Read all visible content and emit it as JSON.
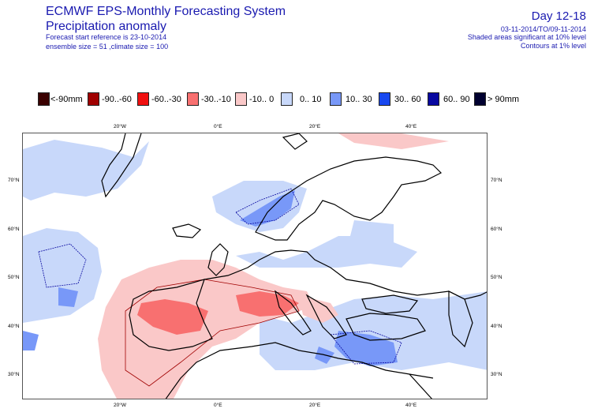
{
  "header": {
    "title": "ECMWF EPS-Monthly Forecasting System",
    "subtitle": "Precipitation anomaly",
    "forecast_ref": "Forecast start reference is 23-10-2014",
    "ensemble": "ensemble size = 51  ,climate size = 100",
    "day": "Day 12-18",
    "period": "03-11-2014/TO/09-11-2014",
    "sig10": "Shaded areas significant at 10% level",
    "sig1": "Contours at 1% level"
  },
  "legend": [
    {
      "label": "<-90mm",
      "color": "#3a0000"
    },
    {
      "label": "-90..-60",
      "color": "#a00000"
    },
    {
      "label": "-60..-30",
      "color": "#f01010"
    },
    {
      "label": "-30..-10",
      "color": "#f87070"
    },
    {
      "label": "-10..  0",
      "color": "#fac8c8"
    },
    {
      "label": "0..  10",
      "color": "#c8d8fa"
    },
    {
      "label": "10..  30",
      "color": "#7898f8"
    },
    {
      "label": "30..  60",
      "color": "#1848f0"
    },
    {
      "label": "60..  90",
      "color": "#0808a0"
    },
    {
      "label": ">  90mm",
      "color": "#000030"
    }
  ],
  "map": {
    "top_lon_labels": [
      "20°W",
      "0°E",
      "20°E",
      "40°E"
    ],
    "bottom_lon_labels": [
      "20°W",
      "0°E",
      "20°E",
      "40°E"
    ],
    "left_lat_labels": [
      "70°N",
      "60°N",
      "50°N",
      "40°N",
      "30°N"
    ],
    "right_lat_labels": [
      "70°N",
      "60°N",
      "50°N",
      "40°N",
      "30°N"
    ]
  }
}
